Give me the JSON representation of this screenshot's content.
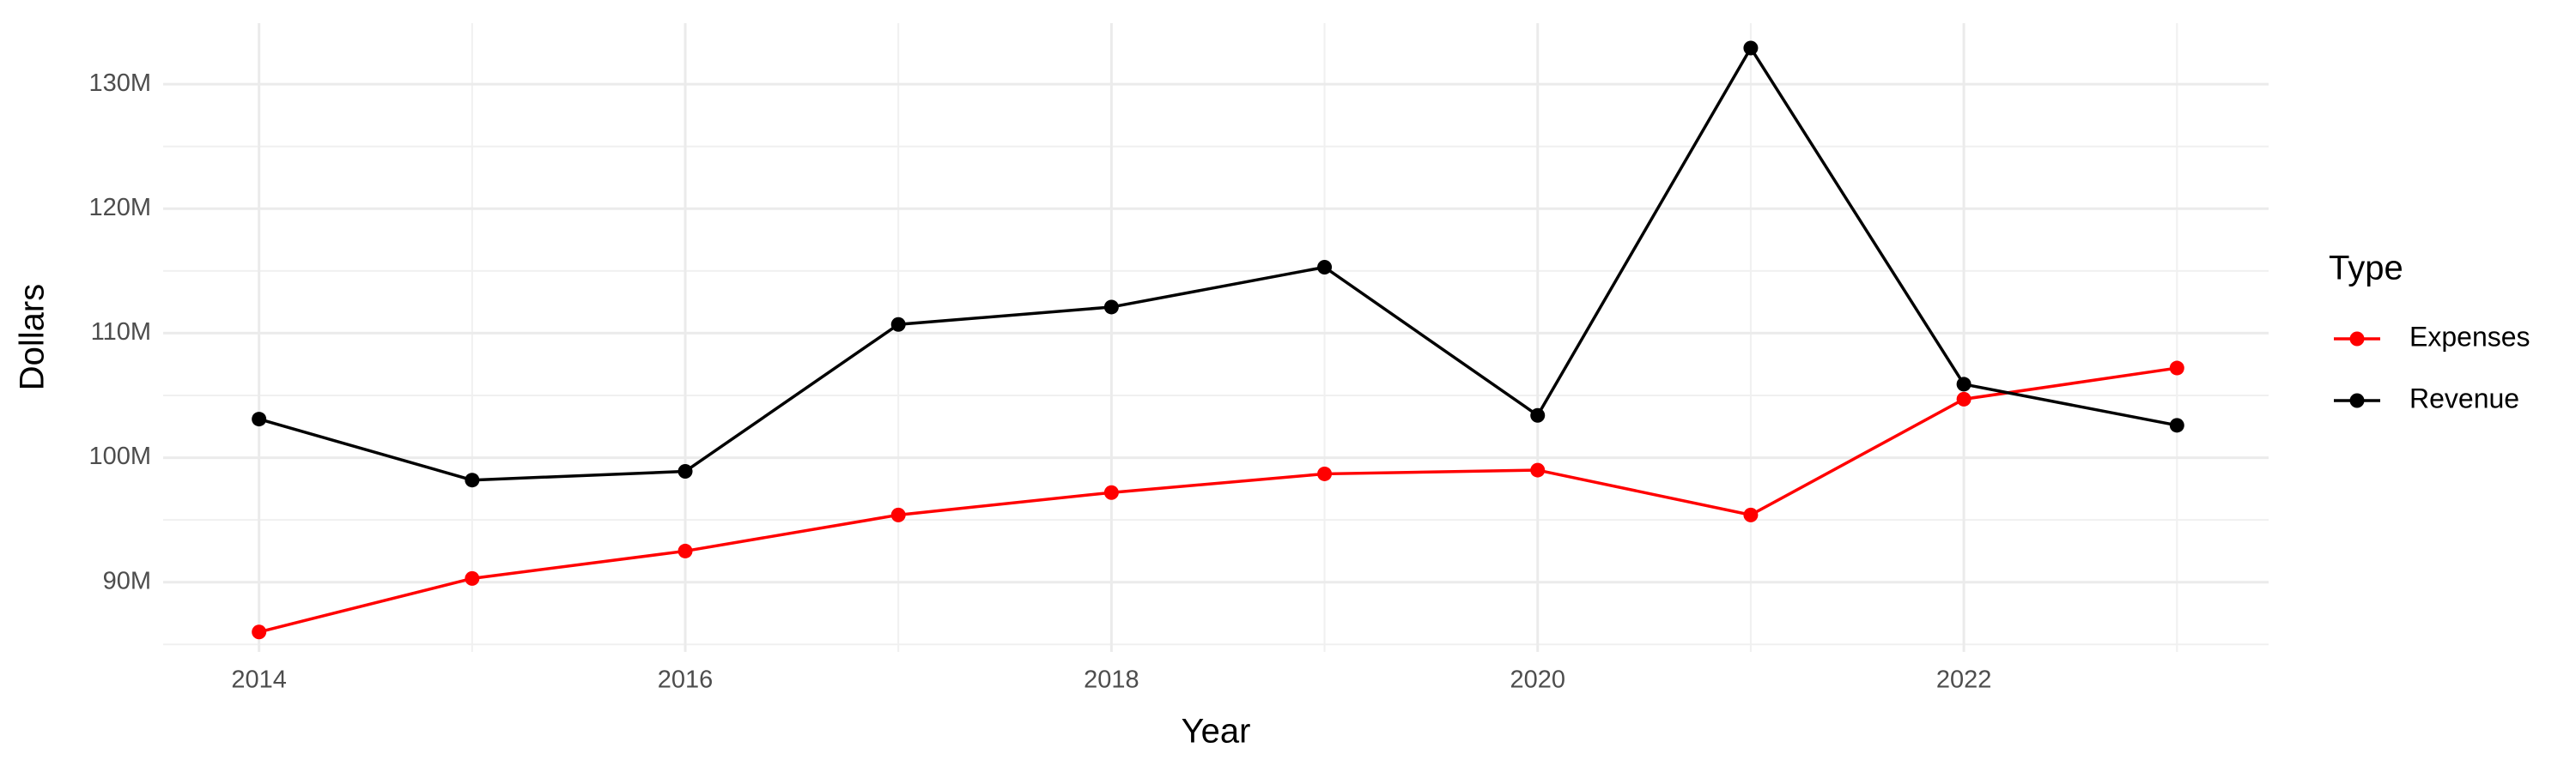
{
  "chart_data": {
    "type": "line",
    "x_label": "Year",
    "y_label": "Dollars",
    "legend_title": "Type",
    "x": [
      2014,
      2015,
      2016,
      2017,
      2018,
      2019,
      2020,
      2021,
      2022,
      2023
    ],
    "series": [
      {
        "name": "Expenses",
        "color": "#ff0000",
        "values": [
          86000000,
          90300000,
          92500000,
          95400000,
          97200000,
          98700000,
          99000000,
          95400000,
          104700000,
          107200000
        ]
      },
      {
        "name": "Revenue",
        "color": "#000000",
        "values": [
          103100000,
          98200000,
          98900000,
          110700000,
          112100000,
          115300000,
          103400000,
          132900000,
          105900000,
          102600000
        ]
      }
    ],
    "xlim": [
      2013.55,
      2023.43
    ],
    "ylim": [
      84400000,
      134900000
    ],
    "xticks": [
      2014,
      2016,
      2018,
      2020,
      2022
    ],
    "yticks": [
      {
        "value": 90000000,
        "label": "90M"
      },
      {
        "value": 100000000,
        "label": "100M"
      },
      {
        "value": 110000000,
        "label": "110M"
      },
      {
        "value": 120000000,
        "label": "120M"
      },
      {
        "value": 130000000,
        "label": "130M"
      }
    ],
    "grid": true,
    "legend_position": "right"
  }
}
